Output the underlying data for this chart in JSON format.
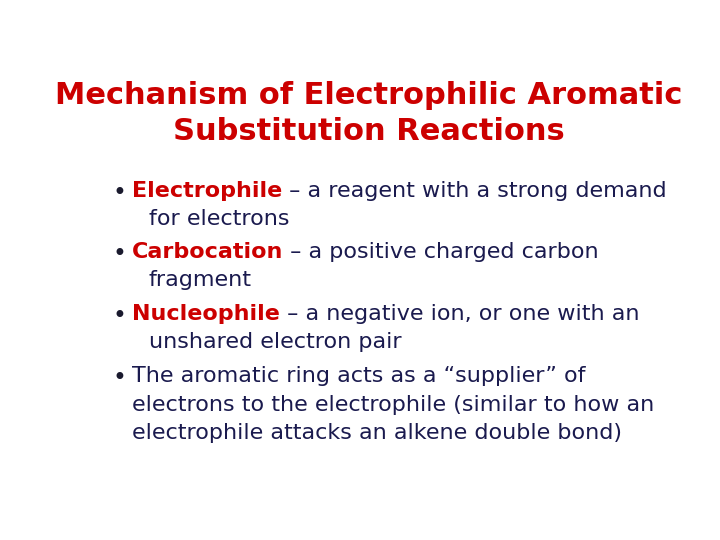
{
  "background_color": "#ffffff",
  "title_line1": "Mechanism of Electrophilic Aromatic",
  "title_line2": "Substitution Reactions",
  "title_color": "#cc0000",
  "title_fontsize": 22,
  "bullet_dot_color": "#1a1a2e",
  "text_color": "#1a1a4e",
  "keyword_color": "#cc0000",
  "items": [
    {
      "keyword": "Electrophile",
      "rest1": " – a reagent with a strong demand",
      "rest2": "for electrons"
    },
    {
      "keyword": "Carbocation",
      "rest1": " – a positive charged carbon",
      "rest2": "fragment"
    },
    {
      "keyword": "Nucleophile",
      "rest1": " – a negative ion, or one with an",
      "rest2": "unshared electron pair"
    }
  ],
  "bottom_line1": "The aromatic ring acts as a “supplier” of",
  "bottom_line2": "electrons to the electrophile (similar to how an",
  "bottom_line3": "electrophile attacks an alkene double bond)",
  "body_fontsize": 16,
  "bullet_marker": "•"
}
